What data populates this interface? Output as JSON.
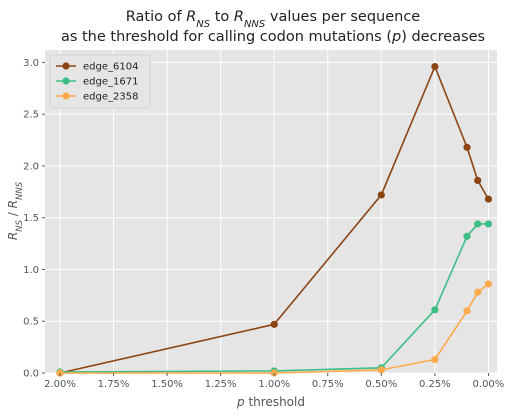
{
  "chart_data": {
    "type": "line",
    "title_line1_parts": [
      "Ratio of ",
      "R",
      "NS",
      " to ",
      "R",
      "NNS",
      " values per sequence"
    ],
    "title_line2_parts": [
      "as the threshold for calling codon mutations (",
      "p",
      ") decreases"
    ],
    "xlabel_parts": [
      "p",
      " threshold"
    ],
    "ylabel_parts": [
      "R",
      "NS",
      " / ",
      "R",
      "NNS"
    ],
    "x_ticks": [
      2.0,
      1.75,
      1.5,
      1.25,
      1.0,
      0.75,
      0.5,
      0.25,
      0.0
    ],
    "x_tick_labels": [
      "2.00%",
      "1.75%",
      "1.50%",
      "1.25%",
      "1.00%",
      "0.75%",
      "0.50%",
      "0.25%",
      "0.00%"
    ],
    "y_ticks": [
      0.0,
      0.5,
      1.0,
      1.5,
      2.0,
      2.5,
      3.0
    ],
    "y_tick_labels": [
      "0.0",
      "0.5",
      "1.0",
      "1.5",
      "2.0",
      "2.5",
      "3.0"
    ],
    "xlim": [
      2.07,
      -0.04
    ],
    "ylim": [
      0.0,
      3.12
    ],
    "x_reversed": true,
    "grid": true,
    "legend_placement": "top-left",
    "series": [
      {
        "name": "edge_6104",
        "color": "#8B4513",
        "x": [
          2.0,
          1.0,
          0.5,
          0.25,
          0.1,
          0.05,
          0.0
        ],
        "y": [
          0.0,
          0.47,
          1.72,
          2.96,
          2.18,
          1.86,
          1.68
        ]
      },
      {
        "name": "edge_1671",
        "color": "#3DBE85",
        "x": [
          2.0,
          1.0,
          0.5,
          0.25,
          0.1,
          0.05,
          0.0
        ],
        "y": [
          0.01,
          0.02,
          0.05,
          0.61,
          1.32,
          1.44,
          1.44
        ]
      },
      {
        "name": "edge_2358",
        "color": "#FFAA4C",
        "x": [
          2.0,
          1.0,
          0.5,
          0.25,
          0.1,
          0.05,
          0.0
        ],
        "y": [
          0.0,
          0.0,
          0.03,
          0.13,
          0.6,
          0.78,
          0.86
        ]
      }
    ]
  }
}
